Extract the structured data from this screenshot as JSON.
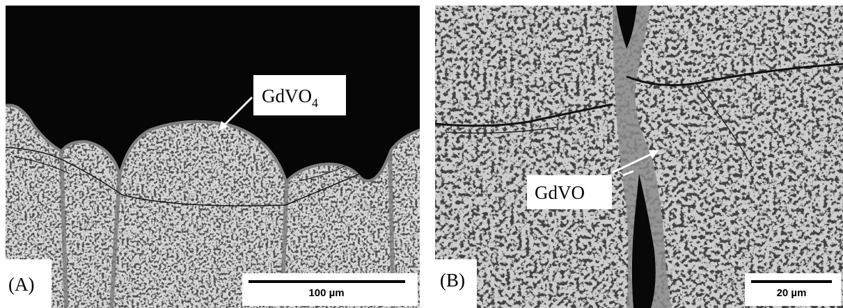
{
  "panels": [
    {
      "label": "(A)",
      "annotation": {
        "text": "GdVO",
        "subscript": "4"
      },
      "scale_bar": "100 µm"
    },
    {
      "label": "(B)",
      "annotation": {
        "text": "GdVO"
      },
      "scale_bar": "20 µm"
    }
  ]
}
